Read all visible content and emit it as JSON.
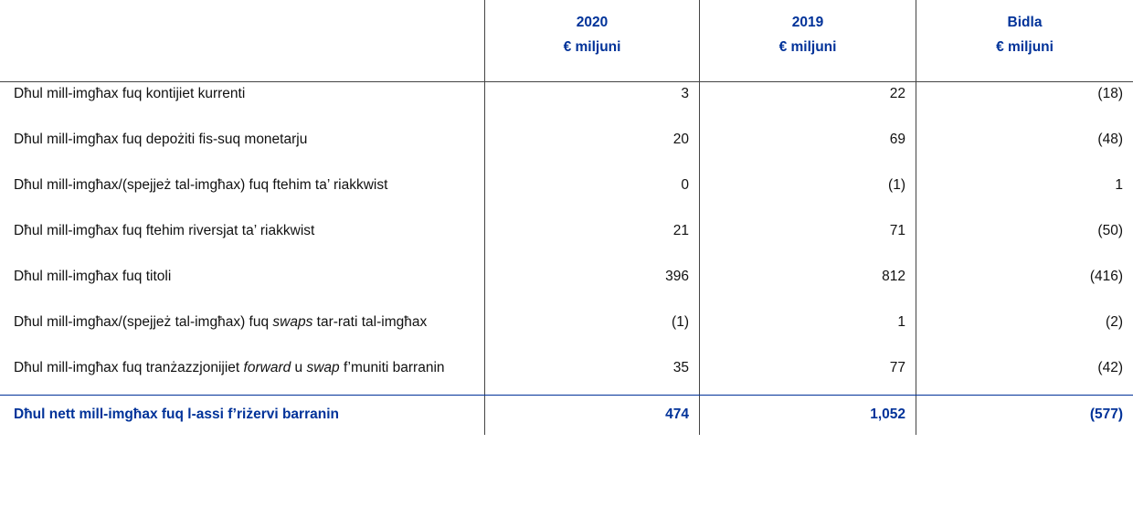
{
  "header": {
    "columns": [
      {
        "title": "2020",
        "unit": "€ miljuni"
      },
      {
        "title": "2019",
        "unit": "€ miljuni"
      },
      {
        "title": "Bidla",
        "unit": "€ miljuni"
      }
    ]
  },
  "table": {
    "rows": [
      {
        "label": [
          "Dħul mill-imgħax fuq kontijiet kurrenti"
        ],
        "values": [
          "3",
          "22",
          "(18)"
        ]
      },
      {
        "label": [
          "Dħul mill-imgħax fuq depożiti fis-suq monetarju"
        ],
        "values": [
          "20",
          "69",
          "(48)"
        ]
      },
      {
        "label": [
          "Dħul mill-imgħax/(spejjeż tal-imgħax) fuq ftehim ta’ riakkwist"
        ],
        "values": [
          "0",
          "(1)",
          "1"
        ]
      },
      {
        "label": [
          "Dħul mill-imgħax fuq ftehim riversjat ta’ riakkwist"
        ],
        "values": [
          "21",
          "71",
          "(50)"
        ]
      },
      {
        "label": [
          "Dħul mill-imgħax fuq titoli"
        ],
        "values": [
          "396",
          "812",
          "(416)"
        ]
      },
      {
        "label": [
          "Dħul mill-imgħax/(spejjeż tal-imgħax) fuq ",
          "swaps",
          " tar-rati tal-imgħax"
        ],
        "values": [
          "(1)",
          "1",
          "(2)"
        ]
      },
      {
        "label": [
          "Dħul mill-imgħax fuq tranżazzjonijiet ",
          "forward",
          " u ",
          "swap",
          " f’muniti barranin"
        ],
        "values": [
          "35",
          "77",
          "(42)"
        ]
      }
    ],
    "total": {
      "label": "Dħul nett mill-imgħax fuq l-assi f’riżervi barranin",
      "values": [
        "474",
        "1,052",
        "(577)"
      ]
    }
  }
}
